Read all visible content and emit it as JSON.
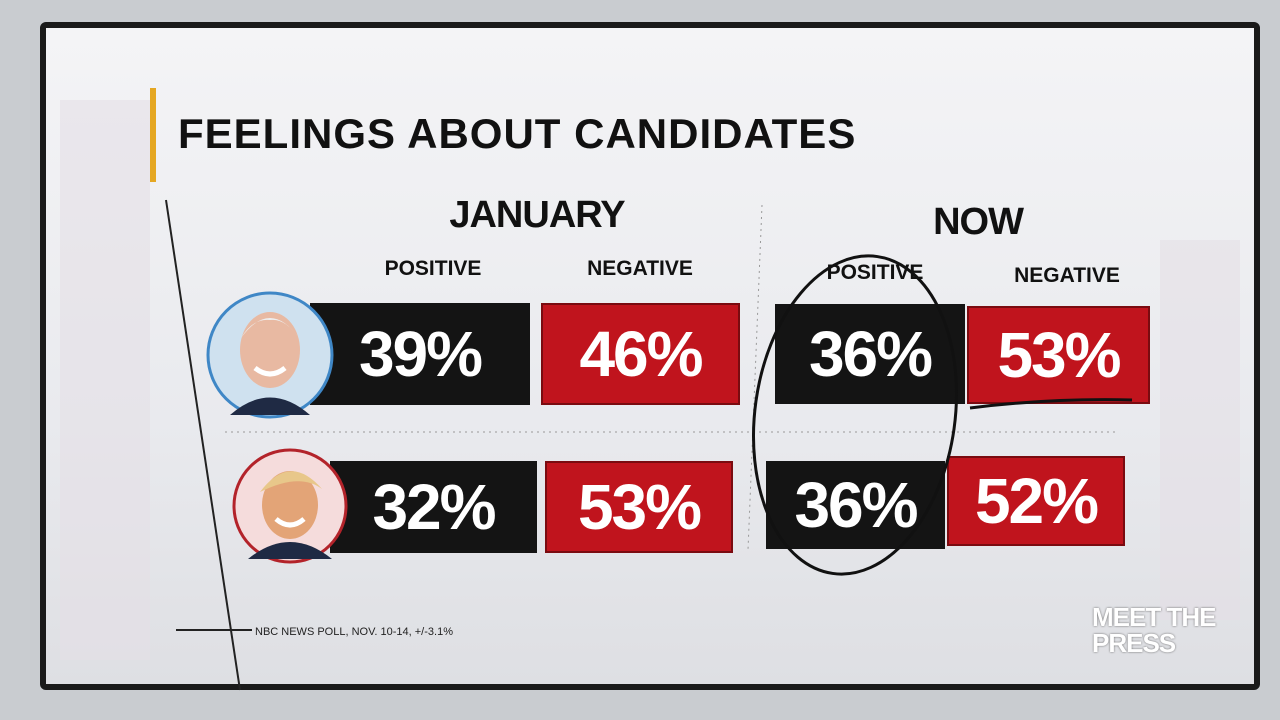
{
  "header": {
    "title": "FEELINGS ABOUT CANDIDATES"
  },
  "table": {
    "periods": [
      "JANUARY",
      "NOW"
    ],
    "columns": [
      "POSITIVE",
      "NEGATIVE",
      "POSITIVE",
      "NEGATIVE"
    ],
    "rows": [
      [
        "39%",
        "46%",
        "36%",
        "53%"
      ],
      [
        "32%",
        "53%",
        "36%",
        "52%"
      ]
    ]
  },
  "footer": {
    "source": "NBC NEWS POLL, NOV. 10-14, +/-3.1%",
    "logo": "MEET THE PRESS"
  }
}
